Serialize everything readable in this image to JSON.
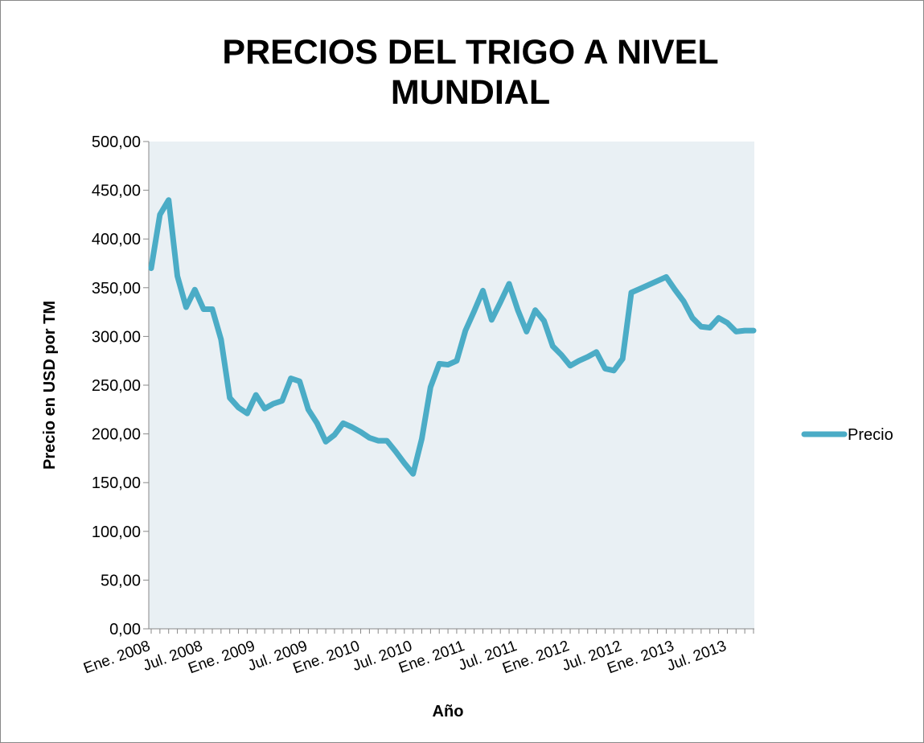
{
  "chart_data": {
    "type": "line",
    "title": "PRECIOS DEL TRIGO A NIVEL MUNDIAL",
    "x_label": "Año",
    "y_label": "Precio en USD por TM",
    "categories": [
      "Ene. 2008",
      null,
      null,
      null,
      null,
      null,
      "Jul. 2008",
      null,
      null,
      null,
      null,
      null,
      "Ene. 2009",
      null,
      null,
      null,
      null,
      null,
      "Jul. 2009",
      null,
      null,
      null,
      null,
      null,
      "Ene. 2010",
      null,
      null,
      null,
      null,
      null,
      "Jul. 2010",
      null,
      null,
      null,
      null,
      null,
      "Ene. 2011",
      null,
      null,
      null,
      null,
      null,
      "Jul. 2011",
      null,
      null,
      null,
      null,
      null,
      "Ene. 2012",
      null,
      null,
      null,
      null,
      null,
      "Jul. 2012",
      null,
      null,
      null,
      null,
      null,
      "Ene. 2013",
      null,
      null,
      null,
      null,
      null,
      "Jul. 2013",
      null,
      null,
      null
    ],
    "series": [
      {
        "name": "Precio",
        "color": "#4bacc6",
        "values": [
          370,
          425,
          440,
          362,
          330,
          348,
          328,
          328,
          297,
          237,
          227,
          221,
          240,
          226,
          231,
          234,
          257,
          254,
          225,
          211,
          192,
          199,
          211,
          207,
          202,
          196,
          193,
          193,
          182,
          170,
          159,
          195,
          248,
          272,
          271,
          275,
          306,
          326,
          347,
          317,
          335,
          354,
          327,
          305,
          327,
          316,
          290,
          281,
          270,
          275,
          279,
          284,
          267,
          265,
          277,
          345,
          349,
          353,
          357,
          361,
          348,
          336,
          319,
          310,
          309,
          319,
          314,
          305,
          306,
          306
        ]
      }
    ],
    "ylim": [
      0,
      500
    ],
    "yticks": [
      {
        "value": 0,
        "label": "0,00"
      },
      {
        "value": 50,
        "label": "50,00"
      },
      {
        "value": 100,
        "label": "100,00"
      },
      {
        "value": 150,
        "label": "150,00"
      },
      {
        "value": 200,
        "label": "200,00"
      },
      {
        "value": 250,
        "label": "250,00"
      },
      {
        "value": 300,
        "label": "300,00"
      },
      {
        "value": 350,
        "label": "350,00"
      },
      {
        "value": 400,
        "label": "400,00"
      },
      {
        "value": 450,
        "label": "450,00"
      },
      {
        "value": 500,
        "label": "500,00"
      }
    ],
    "legend": "right",
    "plot_background": "#e9f0f4"
  }
}
